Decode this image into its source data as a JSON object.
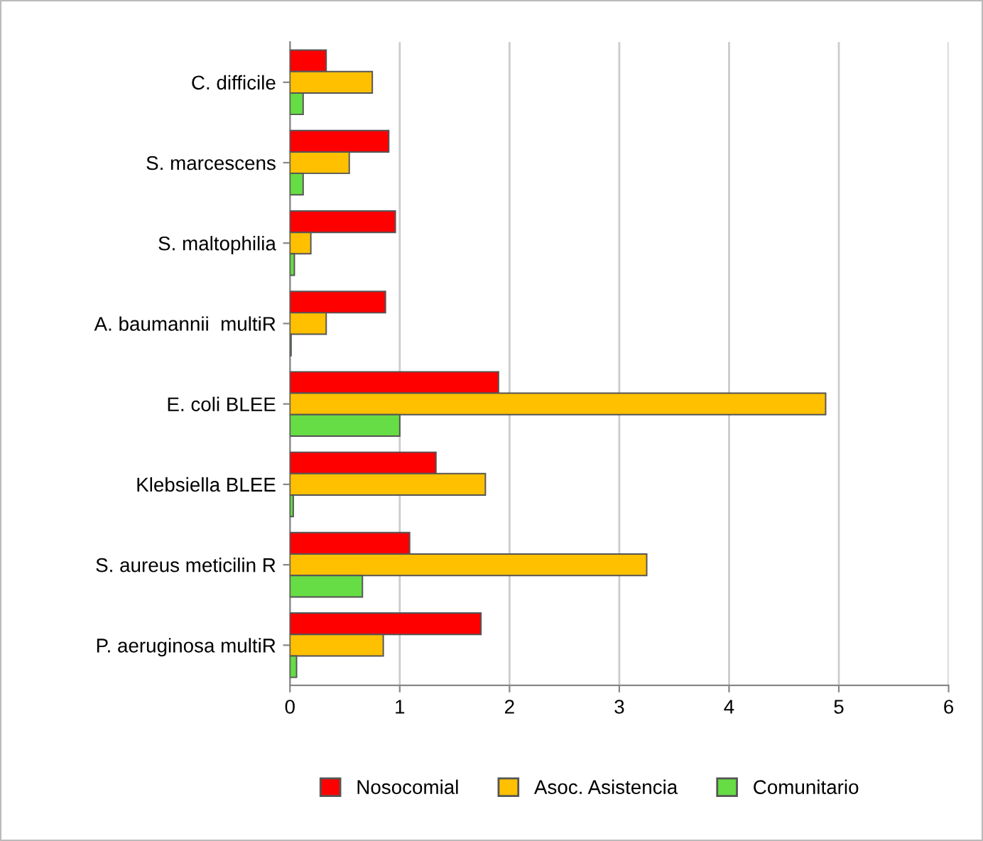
{
  "chart_data": {
    "type": "bar",
    "orientation": "horizontal",
    "categories": [
      "C. difficile",
      "S. marcescens",
      "S. maltophilia",
      "A. baumannii  multiR",
      "E. coli BLEE",
      "Klebsiella BLEE",
      "S. aureus meticilin R",
      "P. aeruginosa multiR"
    ],
    "series": [
      {
        "name": "Nosocomial",
        "color": "#ff0000",
        "values": [
          0.33,
          0.9,
          0.96,
          0.87,
          1.9,
          1.33,
          1.09,
          1.74
        ]
      },
      {
        "name": "Asoc. Asistencia",
        "color": "#ffc000",
        "values": [
          0.75,
          0.54,
          0.19,
          0.33,
          4.88,
          1.78,
          3.25,
          0.85
        ]
      },
      {
        "name": "Comunitario",
        "color": "#66dd44",
        "values": [
          0.12,
          0.12,
          0.04,
          0.01,
          1.0,
          0.03,
          0.66,
          0.06
        ]
      }
    ],
    "xlim": [
      0,
      6
    ],
    "xticks": [
      0,
      1,
      2,
      3,
      4,
      5,
      6
    ],
    "grid": "x",
    "legend": "bottom"
  }
}
